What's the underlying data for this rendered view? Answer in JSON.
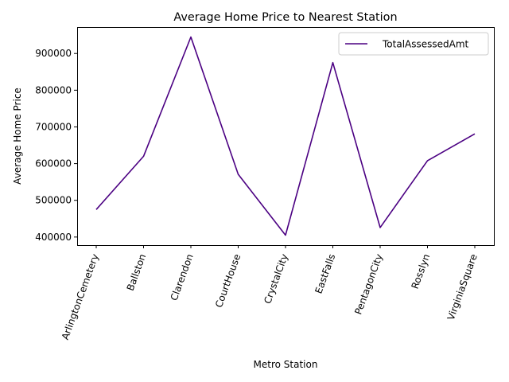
{
  "chart_data": {
    "type": "line",
    "title": "Average Home Price to Nearest Station",
    "xlabel": "Metro Station",
    "ylabel": "Average Home Price",
    "categories": [
      "ArlingtonCemetery",
      "Ballston",
      "Clarendon",
      "CourtHouse",
      "CrystalCity",
      "EastFalls",
      "PentagonCity",
      "Rosslyn",
      "VirginiaSquare"
    ],
    "series": [
      {
        "name": "TotalAssessedAmt",
        "color": "#4b0082",
        "values": [
          475000,
          620000,
          945000,
          571000,
          405000,
          875000,
          426000,
          608000,
          681000
        ]
      }
    ],
    "ylim": [
      378000,
      972000
    ],
    "yticks": [
      400000,
      500000,
      600000,
      700000,
      800000,
      900000
    ],
    "legend_position": "upper-right",
    "grid": false
  }
}
